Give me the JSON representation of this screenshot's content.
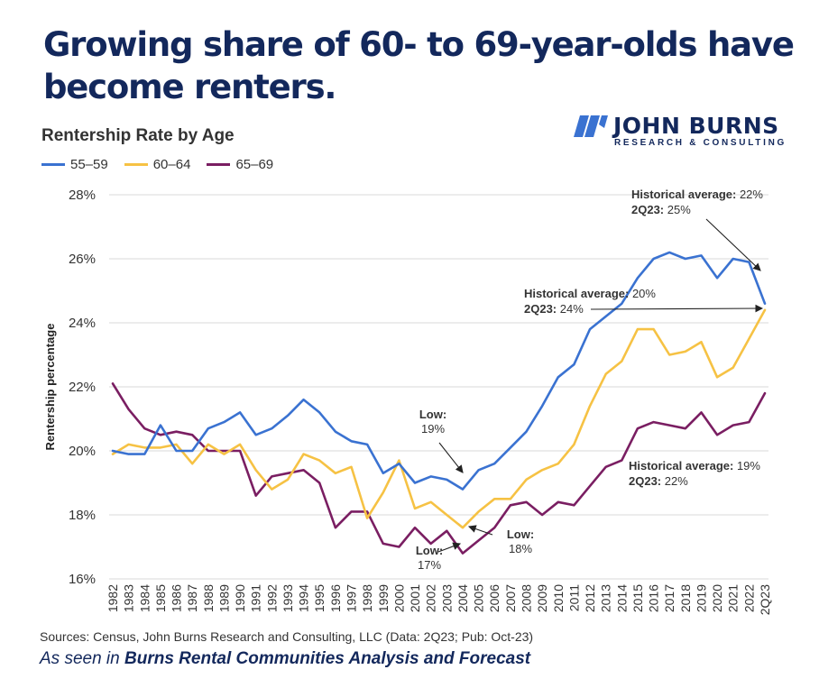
{
  "headline": "Growing share of 60- to 69-year-olds have become renters.",
  "logo": {
    "name": "JOHN BURNS",
    "tagline": "RESEARCH & CONSULTING",
    "icon": "stripes-logo-icon"
  },
  "footer": {
    "sources": "Sources: Census, John Burns Research and Consulting, LLC (Data: 2Q23; Pub: Oct-23)",
    "seen_prefix": "As seen in ",
    "seen_publication": "Burns Rental Communities Analysis and Forecast"
  },
  "colors": {
    "55-59": "#3a72d1",
    "60-64": "#f6c244",
    "65-69": "#7a1e62",
    "title": "#13285c"
  },
  "chart_data": {
    "type": "line",
    "title": "Rentership Rate by Age",
    "xlabel": "",
    "ylabel": "Rentership percentage",
    "ylim": [
      16,
      28
    ],
    "yticks": [
      "16%",
      "18%",
      "20%",
      "22%",
      "24%",
      "26%",
      "28%"
    ],
    "grid": "horizontal",
    "legend_position": "top-left",
    "x": [
      "1982",
      "1983",
      "1984",
      "1985",
      "1986",
      "1987",
      "1988",
      "1989",
      "1990",
      "1991",
      "1992",
      "1993",
      "1994",
      "1995",
      "1996",
      "1997",
      "1998",
      "1999",
      "2000",
      "2001",
      "2002",
      "2003",
      "2004",
      "2005",
      "2006",
      "2007",
      "2008",
      "2009",
      "2010",
      "2011",
      "2012",
      "2013",
      "2014",
      "2015",
      "2016",
      "2017",
      "2018",
      "2019",
      "2020",
      "2021",
      "2022",
      "2Q23"
    ],
    "series": [
      {
        "name": "55–59",
        "values": [
          20.0,
          19.9,
          19.9,
          20.8,
          20.0,
          20.0,
          20.7,
          20.9,
          21.2,
          20.5,
          20.7,
          21.1,
          21.6,
          21.2,
          20.6,
          20.3,
          20.2,
          19.3,
          19.6,
          19.0,
          19.2,
          19.1,
          18.8,
          19.4,
          19.6,
          20.1,
          20.6,
          21.4,
          22.3,
          22.7,
          23.8,
          24.2,
          24.6,
          25.4,
          26.0,
          26.2,
          26.0,
          26.1,
          25.4,
          26.0,
          25.9,
          24.6
        ]
      },
      {
        "name": "60–64",
        "values": [
          19.9,
          20.2,
          20.1,
          20.1,
          20.2,
          19.6,
          20.2,
          19.9,
          20.2,
          19.4,
          18.8,
          19.1,
          19.9,
          19.7,
          19.3,
          19.5,
          17.9,
          18.7,
          19.7,
          18.2,
          18.4,
          18.0,
          17.6,
          18.1,
          18.5,
          18.5,
          19.1,
          19.4,
          19.6,
          20.2,
          21.4,
          22.4,
          22.8,
          23.8,
          23.8,
          23.0,
          23.1,
          23.4,
          22.3,
          22.6,
          23.5,
          24.4
        ]
      },
      {
        "name": "65–69",
        "values": [
          22.1,
          21.3,
          20.7,
          20.5,
          20.6,
          20.5,
          20.0,
          20.0,
          20.0,
          18.6,
          19.2,
          19.3,
          19.4,
          19.0,
          17.6,
          18.1,
          18.1,
          17.1,
          17.0,
          17.6,
          17.1,
          17.5,
          16.8,
          17.2,
          17.6,
          18.3,
          18.4,
          18.0,
          18.4,
          18.3,
          18.9,
          19.5,
          19.7,
          20.7,
          20.9,
          20.8,
          20.7,
          21.2,
          20.5,
          20.8,
          20.9,
          21.8
        ]
      }
    ],
    "annotations": [
      {
        "label": "Historical average:",
        "value": "22%",
        "period": "2Q23:",
        "period_value": "25%",
        "series": "55–59"
      },
      {
        "label": "Historical average:",
        "value": "20%",
        "period": "2Q23:",
        "period_value": "24%",
        "series": "60–64"
      },
      {
        "label": "Historical average:",
        "value": "19%",
        "period": "2Q23:",
        "period_value": "22%",
        "series": "65–69"
      },
      {
        "label": "Low:",
        "value": "19%",
        "series": "55–59",
        "at": "2004"
      },
      {
        "label": "Low:",
        "value": "18%",
        "series": "60–64",
        "at": "2004"
      },
      {
        "label": "Low:",
        "value": "17%",
        "series": "65–69",
        "at": "2004"
      }
    ]
  }
}
